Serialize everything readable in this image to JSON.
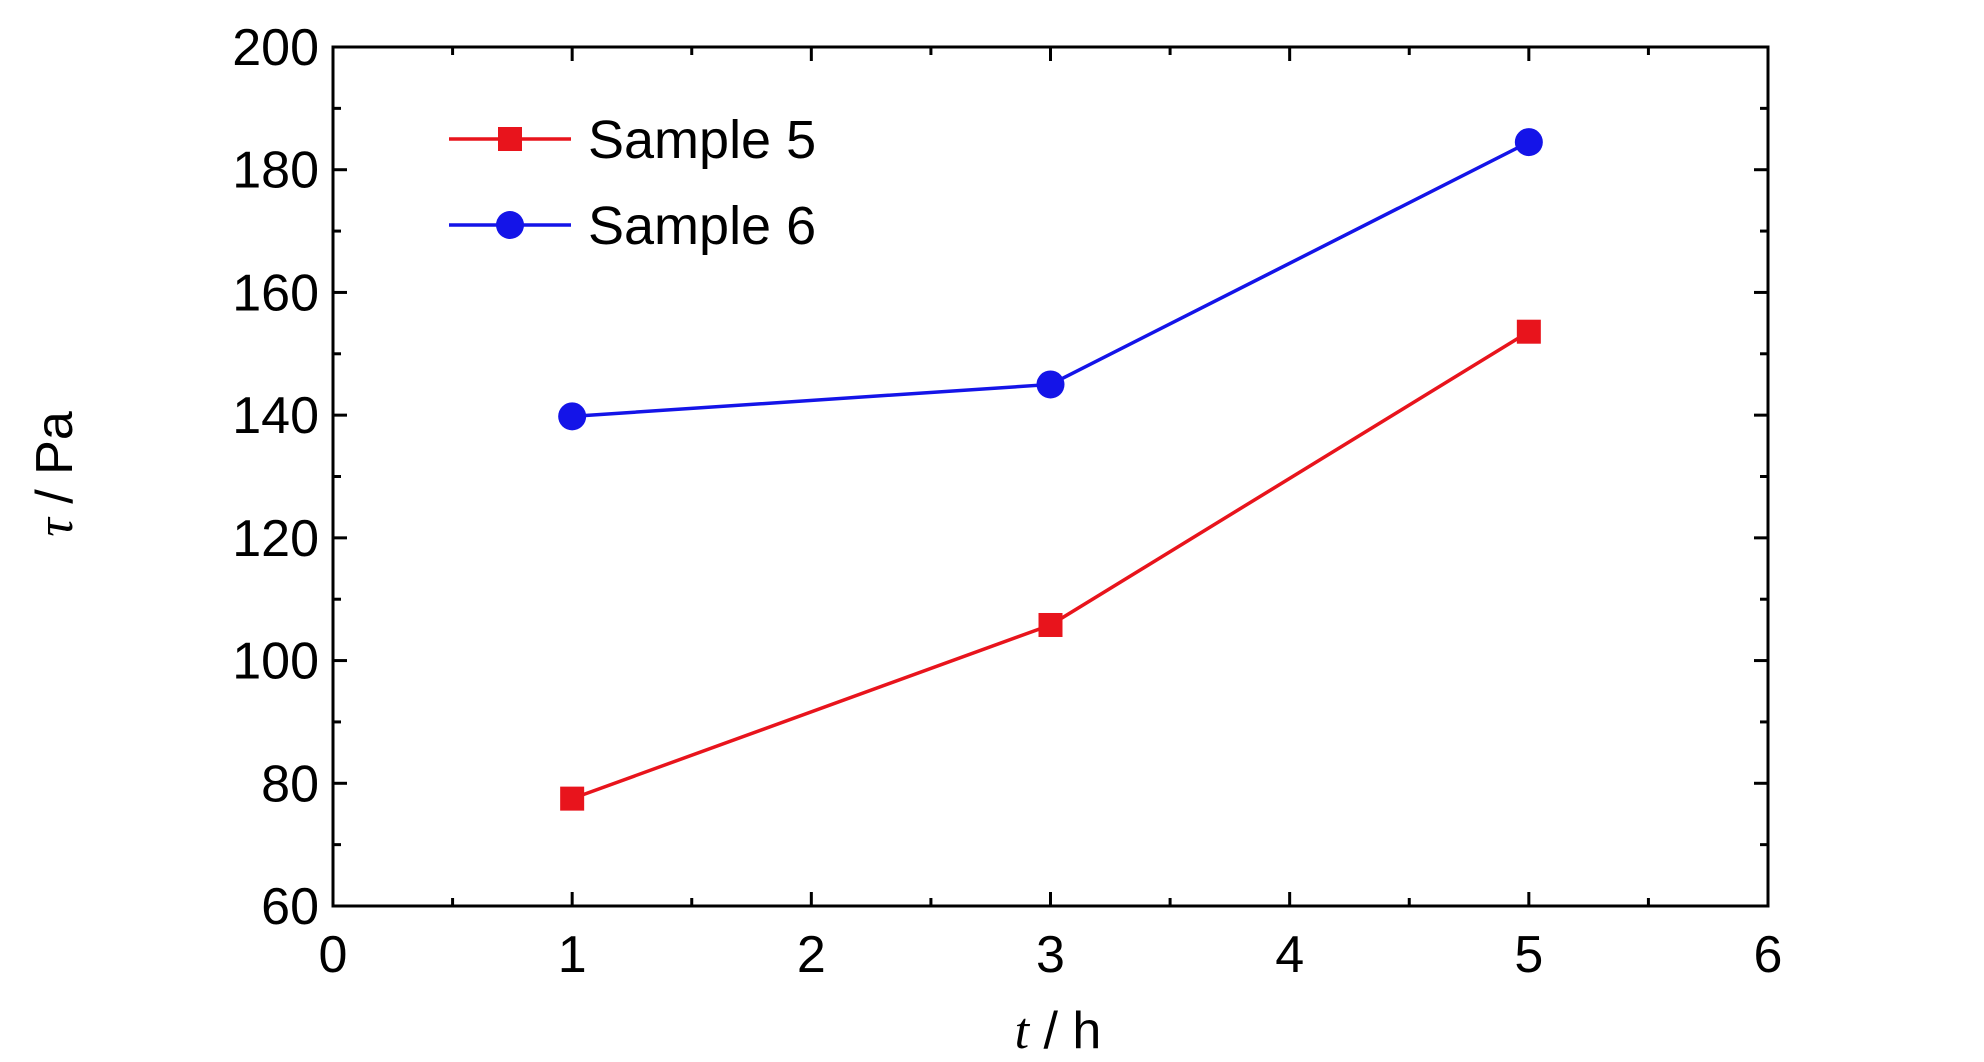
{
  "chart_data": {
    "type": "line",
    "xlabel": {
      "var": "t",
      "unit": " / h"
    },
    "ylabel": {
      "var": "τ",
      "unit": " / Pa"
    },
    "xlim": [
      0,
      6
    ],
    "ylim": [
      60,
      200
    ],
    "xticks": [
      "0",
      "1",
      "2",
      "3",
      "4",
      "5",
      "6"
    ],
    "yticks": [
      "60",
      "80",
      "100",
      "120",
      "140",
      "160",
      "180",
      "200"
    ],
    "grid": false,
    "legend_position": "top-left",
    "series": [
      {
        "name": "Sample 5",
        "color": "#e8141c",
        "marker": "square",
        "x": [
          1,
          3,
          5
        ],
        "y": [
          77.5,
          105.8,
          153.6
        ]
      },
      {
        "name": "Sample 6",
        "color": "#1414e8",
        "marker": "circle",
        "x": [
          1,
          3,
          5
        ],
        "y": [
          139.8,
          145.0,
          184.5
        ]
      }
    ]
  }
}
